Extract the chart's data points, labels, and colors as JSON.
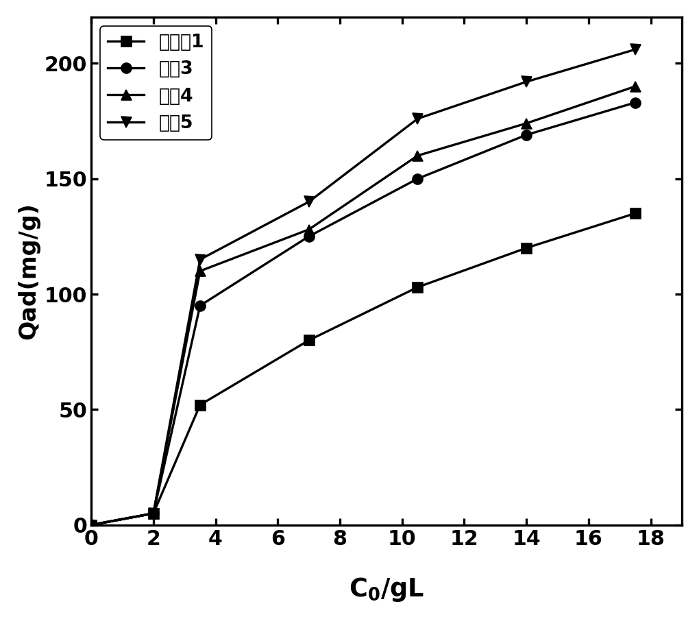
{
  "series": [
    {
      "label": "实施例1",
      "x": [
        0,
        2,
        3.5,
        7,
        10.5,
        14,
        17.5
      ],
      "y": [
        0,
        5,
        52,
        80,
        103,
        120,
        135
      ],
      "marker": "s",
      "color": "#000000",
      "linestyle": "-"
    },
    {
      "label": "对比3",
      "x": [
        0,
        2,
        3.5,
        7,
        10.5,
        14,
        17.5
      ],
      "y": [
        0,
        5,
        95,
        125,
        150,
        169,
        183
      ],
      "marker": "o",
      "color": "#000000",
      "linestyle": "-"
    },
    {
      "label": "对比4",
      "x": [
        0,
        2,
        3.5,
        7,
        10.5,
        14,
        17.5
      ],
      "y": [
        0,
        5,
        110,
        128,
        160,
        174,
        190
      ],
      "marker": "^",
      "color": "#000000",
      "linestyle": "-"
    },
    {
      "label": "对比5",
      "x": [
        0,
        2,
        3.5,
        7,
        10.5,
        14,
        17.5
      ],
      "y": [
        0,
        5,
        115,
        140,
        176,
        192,
        206
      ],
      "marker": "v",
      "color": "#000000",
      "linestyle": "-"
    }
  ],
  "ylabel": "Qad(mg/g)",
  "xlim": [
    0,
    19
  ],
  "ylim": [
    0,
    220
  ],
  "xticks": [
    0,
    2,
    4,
    6,
    8,
    10,
    12,
    14,
    16,
    18
  ],
  "yticks": [
    0,
    50,
    100,
    150,
    200
  ],
  "background_color": "#ffffff",
  "linewidth": 2.0,
  "markersize": 9,
  "axis_fontsize": 20,
  "tick_fontsize": 18,
  "legend_fontsize": 16
}
